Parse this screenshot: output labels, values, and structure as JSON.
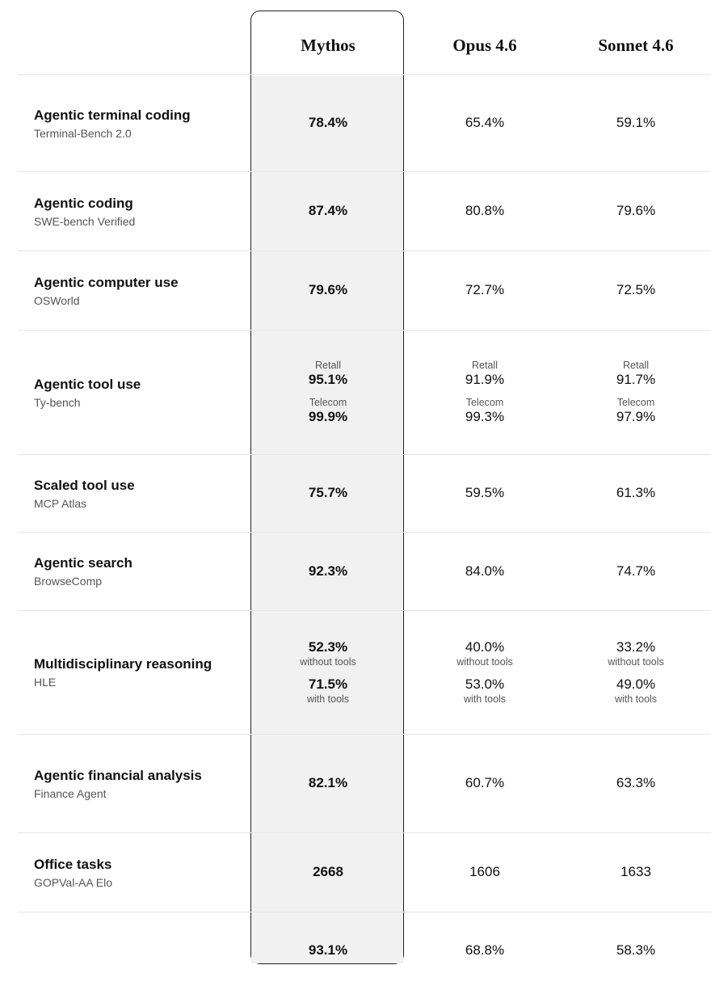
{
  "columns": [
    "Mythos",
    "Opus 4.6",
    "Sonnet 4.6"
  ],
  "rows": [
    {
      "title": "Agentic terminal coding",
      "subtitle": "Terminal-Bench 2.0",
      "values": [
        [
          "78.4%"
        ],
        [
          "65.4%"
        ],
        [
          "59.1%"
        ]
      ]
    },
    {
      "title": "Agentic coding",
      "subtitle": "SWE-bench Verified",
      "values": [
        [
          "87.4%"
        ],
        [
          "80.8%"
        ],
        [
          "79.6%"
        ]
      ]
    },
    {
      "title": "Agentic computer use",
      "subtitle": "OSWorld",
      "values": [
        [
          "79.6%"
        ],
        [
          "72.7%"
        ],
        [
          "72.5%"
        ]
      ]
    },
    {
      "title": "Agentic tool use",
      "subtitle": "Ty-bench",
      "groups": [
        {
          "above": "Retall",
          "values": [
            "95.1%",
            "91.9%",
            "91.7%"
          ]
        },
        {
          "above": "Telecom",
          "values": [
            "99.9%",
            "99.3%",
            "97.9%"
          ]
        }
      ]
    },
    {
      "title": "Scaled tool use",
      "subtitle": "MCP Atlas",
      "values": [
        [
          "75.7%"
        ],
        [
          "59.5%"
        ],
        [
          "61.3%"
        ]
      ]
    },
    {
      "title": "Agentic search",
      "subtitle": "BrowseComp",
      "values": [
        [
          "92.3%"
        ],
        [
          "84.0%"
        ],
        [
          "74.7%"
        ]
      ]
    },
    {
      "title": "Multidisciplinary reasoning",
      "subtitle": "HLE",
      "groups": [
        {
          "below": "without tools",
          "values": [
            "52.3%",
            "40.0%",
            "33.2%"
          ]
        },
        {
          "below": "with tools",
          "values": [
            "71.5%",
            "53.0%",
            "49.0%"
          ]
        }
      ]
    },
    {
      "title": "Agentic financial analysis",
      "subtitle": "Finance Agent",
      "values": [
        [
          "82.1%"
        ],
        [
          "60.7%"
        ],
        [
          "63.3%"
        ]
      ]
    },
    {
      "title": "Office tasks",
      "subtitle": "GOPVal-AA Elo",
      "values": [
        [
          "2668"
        ],
        [
          "1606"
        ],
        [
          "1633"
        ]
      ]
    },
    {
      "title": "",
      "subtitle": "",
      "values": [
        [
          "93.1%"
        ],
        [
          "68.8%"
        ],
        [
          "58.3%"
        ]
      ]
    }
  ]
}
